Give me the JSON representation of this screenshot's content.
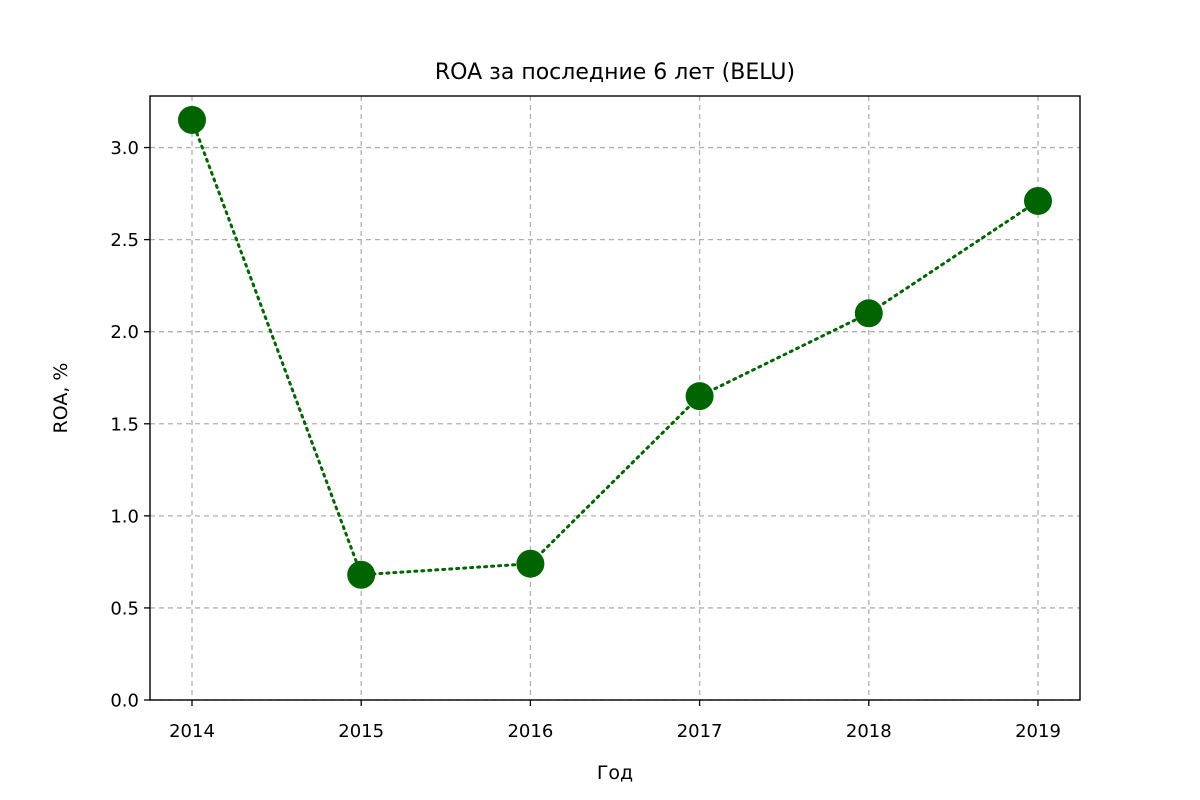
{
  "chart_data": {
    "type": "line",
    "title": "ROA за последние 6 лет (BELU)",
    "xlabel": "Год",
    "ylabel": "ROA, %",
    "x": [
      "2014",
      "2015",
      "2016",
      "2017",
      "2018",
      "2019"
    ],
    "series": [
      {
        "values": [
          3.15,
          0.68,
          0.74,
          1.65,
          2.1,
          2.71
        ]
      }
    ],
    "ylim": [
      0,
      3.28
    ],
    "yticks": [
      "0.0",
      "0.5",
      "1.0",
      "1.5",
      "2.0",
      "2.5",
      "3.0"
    ],
    "grid": true,
    "line_style": "dotted",
    "marker": "circle",
    "color": "#006400"
  }
}
